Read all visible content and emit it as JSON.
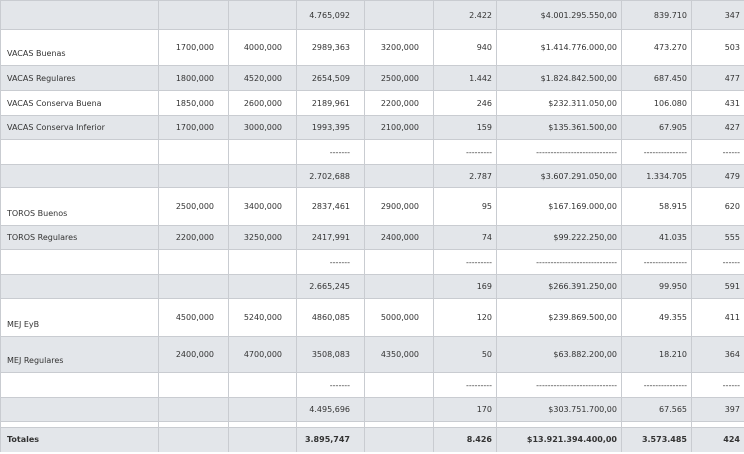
{
  "rows": [
    {
      "shade": "shaded",
      "h": 29,
      "label": "",
      "c1": "",
      "c2": "",
      "c3": "4.765,092",
      "c4": "",
      "c5": "2.422",
      "c6": "$4.001.295.550,00",
      "c7": "839.710",
      "c8": "347",
      "label_bottom": false
    },
    {
      "shade": "white",
      "h": 36,
      "label": "VACAS Buenas",
      "c1": "1700,000",
      "c2": "4000,000",
      "c3": "2989,363",
      "c4": "3200,000",
      "c5": "940",
      "c6": "$1.414.776.000,00",
      "c7": "473.270",
      "c8": "503",
      "label_bottom": true
    },
    {
      "shade": "shaded",
      "h": 25,
      "label": "VACAS Regulares",
      "c1": "1800,000",
      "c2": "4520,000",
      "c3": "2654,509",
      "c4": "2500,000",
      "c5": "1.442",
      "c6": "$1.824.842.500,00",
      "c7": "687.450",
      "c8": "477",
      "label_bottom": false
    },
    {
      "shade": "white",
      "h": 25,
      "label": "VACAS Conserva Buena",
      "c1": "1850,000",
      "c2": "2600,000",
      "c3": "2189,961",
      "c4": "2200,000",
      "c5": "246",
      "c6": "$232.311.050,00",
      "c7": "106.080",
      "c8": "431",
      "label_bottom": false
    },
    {
      "shade": "shaded",
      "h": 24,
      "label": "VACAS Conserva Inferior",
      "c1": "1700,000",
      "c2": "3000,000",
      "c3": "1993,395",
      "c4": "2100,000",
      "c5": "159",
      "c6": "$135.361.500,00",
      "c7": "67.905",
      "c8": "427",
      "label_bottom": false
    },
    {
      "shade": "white",
      "h": 25,
      "label": "",
      "c1": "",
      "c2": "",
      "c3": "-------",
      "c4": "",
      "c5": "---------",
      "c6": "----------------------------",
      "c7": "---------------",
      "c8": "------",
      "label_bottom": false
    },
    {
      "shade": "shaded",
      "h": 23,
      "label": "",
      "c1": "",
      "c2": "",
      "c3": "2.702,688",
      "c4": "",
      "c5": "2.787",
      "c6": "$3.607.291.050,00",
      "c7": "1.334.705",
      "c8": "479",
      "label_bottom": false
    },
    {
      "shade": "white",
      "h": 38,
      "label": "TOROS Buenos",
      "c1": "2500,000",
      "c2": "3400,000",
      "c3": "2837,461",
      "c4": "2900,000",
      "c5": "95",
      "c6": "$167.169.000,00",
      "c7": "58.915",
      "c8": "620",
      "label_bottom": true
    },
    {
      "shade": "shaded",
      "h": 24,
      "label": "TOROS Regulares",
      "c1": "2200,000",
      "c2": "3250,000",
      "c3": "2417,991",
      "c4": "2400,000",
      "c5": "74",
      "c6": "$99.222.250,00",
      "c7": "41.035",
      "c8": "555",
      "label_bottom": false
    },
    {
      "shade": "white",
      "h": 25,
      "label": "",
      "c1": "",
      "c2": "",
      "c3": "-------",
      "c4": "",
      "c5": "---------",
      "c6": "----------------------------",
      "c7": "---------------",
      "c8": "------",
      "label_bottom": false
    },
    {
      "shade": "shaded",
      "h": 24,
      "label": "",
      "c1": "",
      "c2": "",
      "c3": "2.665,245",
      "c4": "",
      "c5": "169",
      "c6": "$266.391.250,00",
      "c7": "99.950",
      "c8": "591",
      "label_bottom": false
    },
    {
      "shade": "white",
      "h": 38,
      "label": "MEJ EyB",
      "c1": "4500,000",
      "c2": "5240,000",
      "c3": "4860,085",
      "c4": "5000,000",
      "c5": "120",
      "c6": "$239.869.500,00",
      "c7": "49.355",
      "c8": "411",
      "label_bottom": true
    },
    {
      "shade": "shaded",
      "h": 36,
      "label": "MEJ Regulares",
      "c1": "2400,000",
      "c2": "4700,000",
      "c3": "3508,083",
      "c4": "4350,000",
      "c5": "50",
      "c6": "$63.882.200,00",
      "c7": "18.210",
      "c8": "364",
      "label_bottom": true
    },
    {
      "shade": "white",
      "h": 25,
      "label": "",
      "c1": "",
      "c2": "",
      "c3": "-------",
      "c4": "",
      "c5": "---------",
      "c6": "----------------------------",
      "c7": "---------------",
      "c8": "------",
      "label_bottom": false
    },
    {
      "shade": "shaded",
      "h": 24,
      "label": "",
      "c1": "",
      "c2": "",
      "c3": "4.495,696",
      "c4": "",
      "c5": "170",
      "c6": "$303.751.700,00",
      "c7": "67.565",
      "c8": "397",
      "label_bottom": false
    }
  ],
  "spacer_h": 6,
  "totals": {
    "h": 24,
    "label": "Totales",
    "c1": "",
    "c2": "",
    "c3": "3.895,747",
    "c4": "",
    "c5": "8.426",
    "c6": "$13.921.394.400,00",
    "c7": "3.573.485",
    "c8": "424"
  }
}
